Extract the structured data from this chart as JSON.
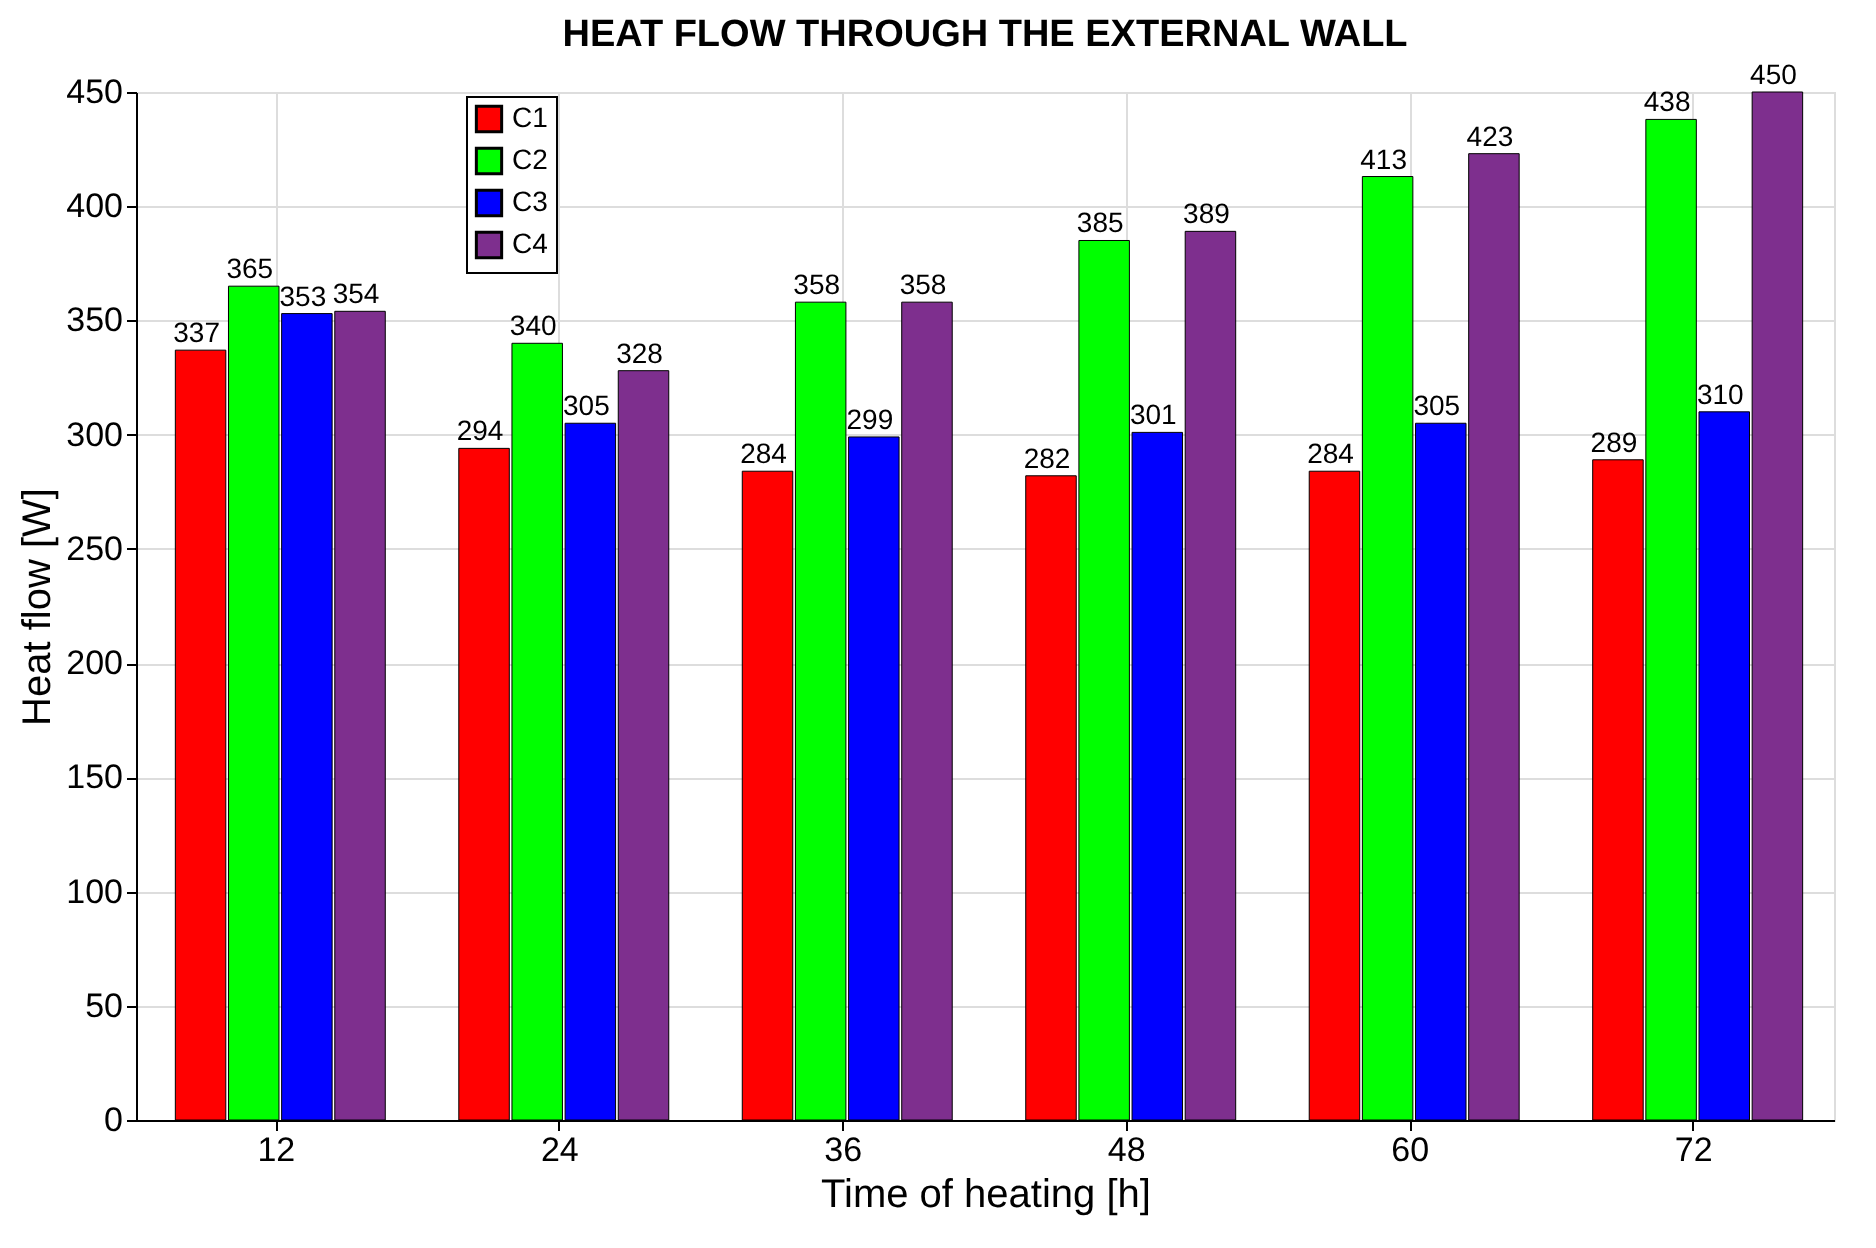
{
  "chart_data": {
    "type": "bar",
    "title": "HEAT FLOW THROUGH THE EXTERNAL WALL",
    "xlabel": "Time of heating [h]",
    "ylabel": "Heat flow [W]",
    "categories": [
      "12",
      "24",
      "36",
      "48",
      "60",
      "72"
    ],
    "series": [
      {
        "name": "C1",
        "color": "#ff0000",
        "values": [
          337,
          294,
          284,
          282,
          284,
          289
        ]
      },
      {
        "name": "C2",
        "color": "#00ff00",
        "values": [
          365,
          340,
          358,
          385,
          413,
          438
        ]
      },
      {
        "name": "C3",
        "color": "#0000ff",
        "values": [
          353,
          305,
          299,
          301,
          305,
          310
        ]
      },
      {
        "name": "C4",
        "color": "#7e2f8e",
        "values": [
          354,
          328,
          358,
          389,
          423,
          450
        ]
      }
    ],
    "ylim": [
      0,
      450
    ],
    "yticks": [
      0,
      50,
      100,
      150,
      200,
      250,
      300,
      350,
      400,
      450
    ],
    "grid": true,
    "legend": "top left",
    "data_labels": true
  }
}
